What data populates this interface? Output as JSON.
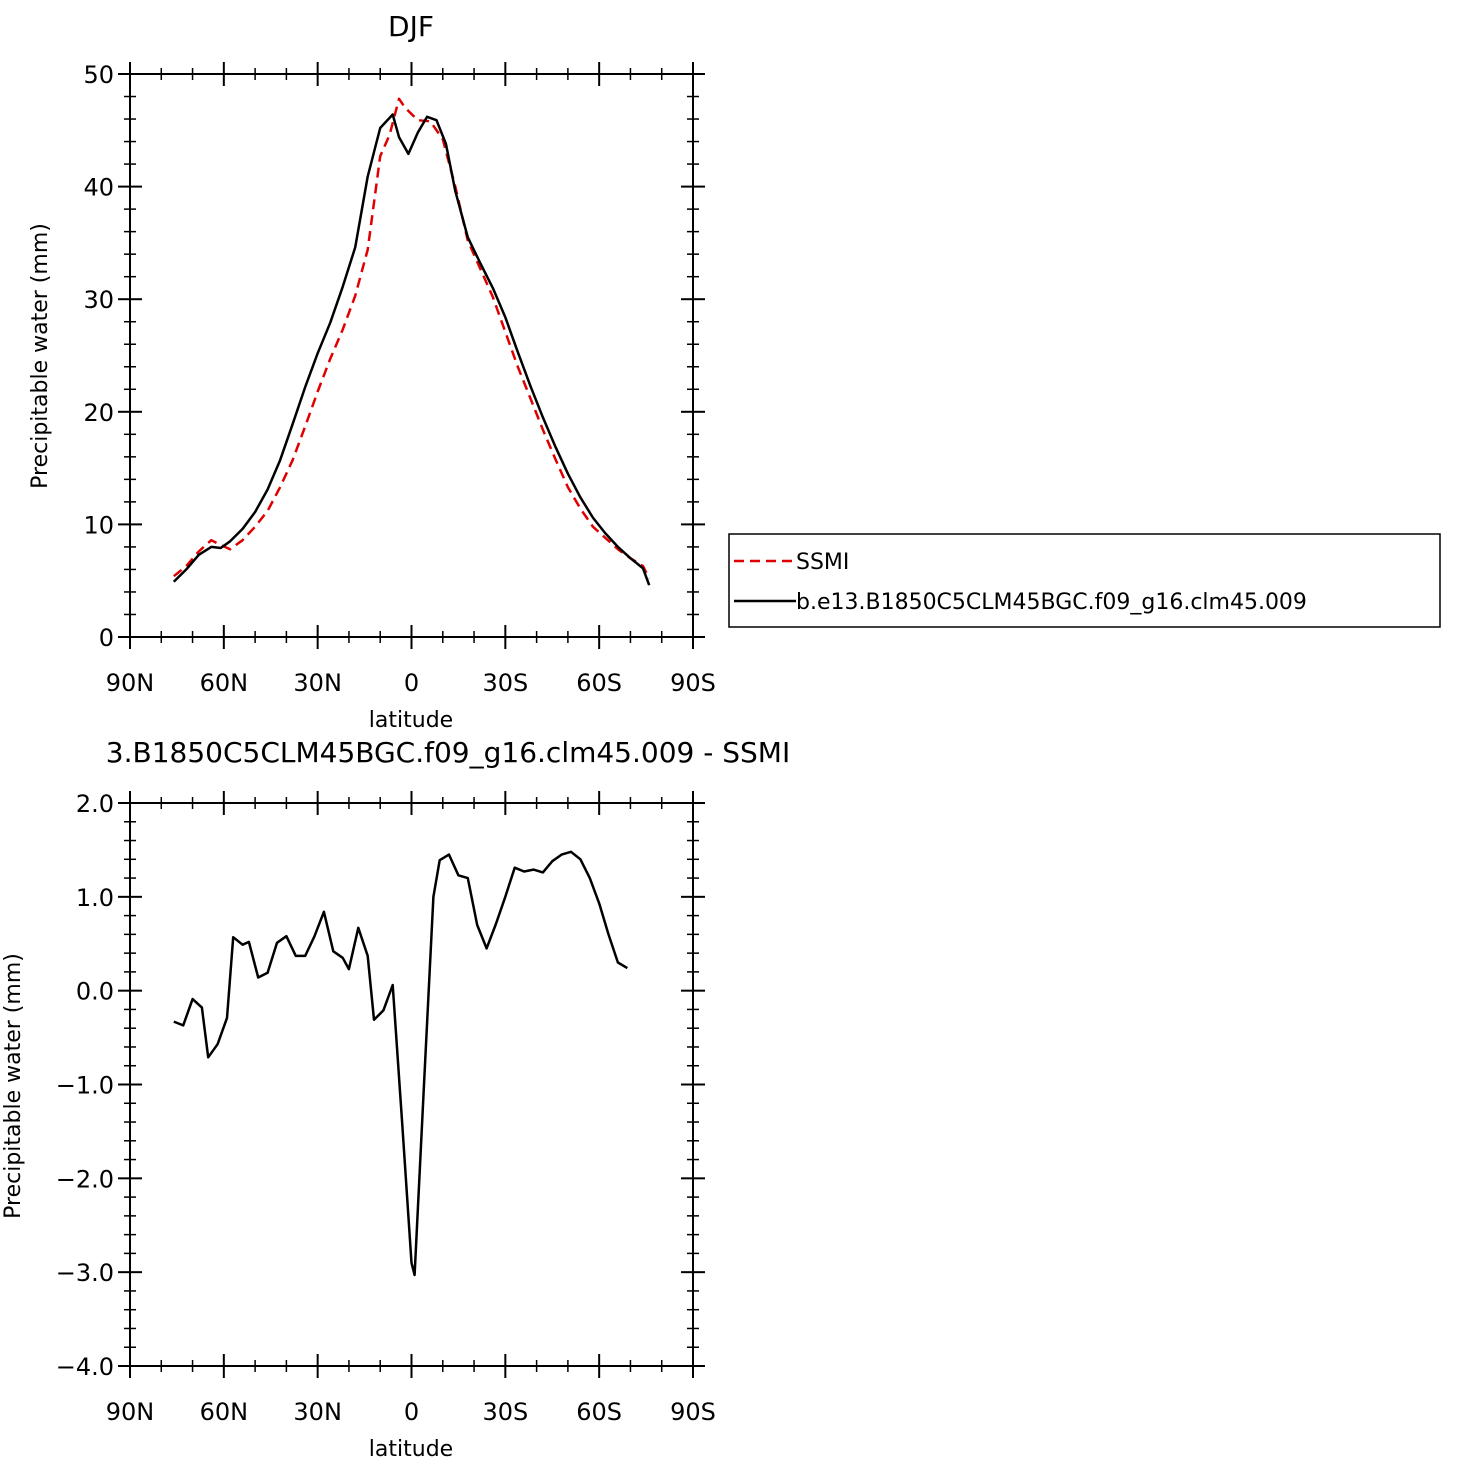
{
  "chart_data": [
    {
      "type": "line",
      "title": "DJF",
      "xlabel": "latitude",
      "ylabel": "Precipitable water (mm)",
      "xlim": [
        -90,
        90
      ],
      "ylim": [
        0,
        50
      ],
      "xticks": [
        -90,
        -60,
        -30,
        0,
        30,
        60,
        90
      ],
      "xtick_labels": [
        "90N",
        "60N",
        "30N",
        "0",
        "30S",
        "60S",
        "90S"
      ],
      "yticks": [
        0,
        10,
        20,
        30,
        40,
        50
      ],
      "ytick_labels": [
        "0",
        "10",
        "20",
        "30",
        "40",
        "50"
      ],
      "legend_position": "right",
      "series": [
        {
          "name": "SSMI",
          "color": "#e00000",
          "dash": "dashed",
          "x": [
            -76,
            -72,
            -68,
            -64,
            -62,
            -58,
            -54,
            -50,
            -46,
            -42,
            -38,
            -34,
            -30,
            -26,
            -22,
            -18,
            -14,
            -10,
            -7,
            -4,
            -2,
            2,
            6,
            10,
            14,
            18,
            22,
            26,
            30,
            34,
            38,
            42,
            46,
            50,
            54,
            58,
            62,
            66,
            70,
            74,
            76
          ],
          "y": [
            5.4,
            6.3,
            7.6,
            8.6,
            8.3,
            7.8,
            8.6,
            9.8,
            11.2,
            13.3,
            15.7,
            18.7,
            21.8,
            24.7,
            27.3,
            30.3,
            34.4,
            42.7,
            44.6,
            47.8,
            47.0,
            45.9,
            45.8,
            44.2,
            40.0,
            35.2,
            32.7,
            30.2,
            27.1,
            24.0,
            21.2,
            18.4,
            15.8,
            13.3,
            11.4,
            9.8,
            8.8,
            7.8,
            7.0,
            6.3,
            5.2
          ]
        },
        {
          "name": "b.e13.B1850C5CLM45BGC.f09_g16.clm45.009",
          "color": "#000000",
          "dash": "solid",
          "x": [
            -76,
            -72,
            -68,
            -64,
            -61,
            -58,
            -54,
            -50,
            -46,
            -42,
            -38,
            -34,
            -30,
            -26,
            -22,
            -18,
            -14,
            -10,
            -6,
            -4,
            -1,
            2,
            5,
            8,
            11,
            14,
            18,
            22,
            26,
            30,
            34,
            38,
            42,
            46,
            50,
            54,
            58,
            62,
            66,
            70,
            74,
            76
          ],
          "y": [
            4.9,
            6.0,
            7.3,
            8.0,
            7.9,
            8.5,
            9.6,
            11.1,
            13.1,
            15.7,
            18.9,
            22.2,
            25.2,
            27.9,
            31.1,
            34.6,
            40.9,
            45.2,
            46.4,
            44.4,
            42.9,
            44.8,
            46.2,
            45.9,
            43.8,
            39.6,
            35.5,
            33.2,
            31.0,
            28.4,
            25.3,
            22.3,
            19.5,
            16.9,
            14.5,
            12.4,
            10.6,
            9.2,
            8.0,
            7.0,
            6.1,
            4.6
          ]
        }
      ]
    },
    {
      "type": "line",
      "title": "3.B1850C5CLM45BGC.f09_g16.clm45.009 - SSMI",
      "xlabel": "latitude",
      "ylabel": "Precipitable water (mm)",
      "xlim": [
        -90,
        90
      ],
      "ylim": [
        -4.0,
        2.0
      ],
      "xticks": [
        -90,
        -60,
        -30,
        0,
        30,
        60,
        90
      ],
      "xtick_labels": [
        "90N",
        "60N",
        "30N",
        "0",
        "30S",
        "60S",
        "90S"
      ],
      "yticks": [
        -4.0,
        -3.0,
        -2.0,
        -1.0,
        0.0,
        1.0,
        2.0
      ],
      "ytick_labels": [
        "−4.0",
        "−3.0",
        "−2.0",
        "−1.0",
        "0.0",
        "1.0",
        "2.0"
      ],
      "series": [
        {
          "color": "#000000",
          "dash": "solid",
          "x": [
            -76,
            -73,
            -70,
            -67,
            -65,
            -62,
            -59,
            -57,
            -54,
            -52,
            -49,
            -46,
            -43,
            -40,
            -37,
            -34,
            -31,
            -28,
            -25,
            -22,
            -20,
            -17,
            -14,
            -12,
            -9,
            -6,
            -3,
            0,
            1,
            4,
            7,
            9,
            12,
            15,
            18,
            21,
            24,
            27,
            30,
            33,
            36,
            39,
            42,
            45,
            48,
            51,
            54,
            57,
            60,
            63,
            66,
            69
          ],
          "y": [
            -0.33,
            -0.37,
            -0.09,
            -0.18,
            -0.71,
            -0.57,
            -0.29,
            0.57,
            0.49,
            0.52,
            0.14,
            0.19,
            0.51,
            0.58,
            0.37,
            0.37,
            0.58,
            0.84,
            0.42,
            0.35,
            0.23,
            0.67,
            0.37,
            -0.31,
            -0.21,
            0.06,
            -1.4,
            -2.9,
            -3.03,
            -1.0,
            1.0,
            1.39,
            1.45,
            1.23,
            1.2,
            0.7,
            0.45,
            0.71,
            1.0,
            1.31,
            1.27,
            1.29,
            1.26,
            1.38,
            1.45,
            1.48,
            1.4,
            1.2,
            0.93,
            0.6,
            0.3,
            0.24
          ]
        }
      ]
    }
  ]
}
